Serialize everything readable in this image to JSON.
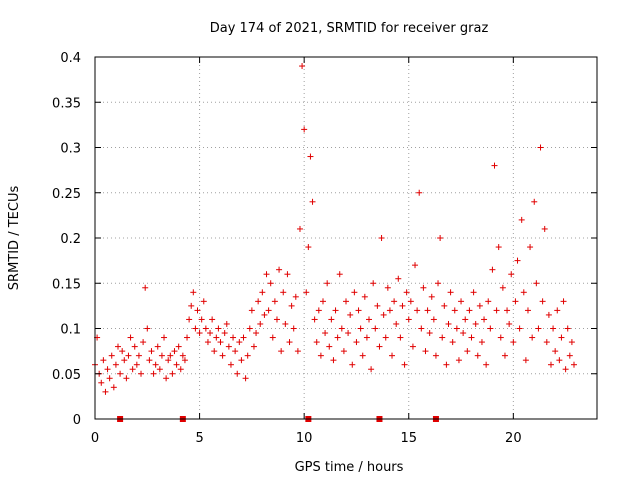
{
  "chart_data": {
    "type": "scatter",
    "title": "Day 174 of 2021, SRMTID for receiver graz",
    "xlabel": "GPS time / hours",
    "ylabel": "SRMTID / TECUs",
    "xlim": [
      0,
      24
    ],
    "ylim": [
      0,
      0.4
    ],
    "x_ticks": [
      0,
      5,
      10,
      15,
      20
    ],
    "x_tick_labels": [
      "0",
      "5",
      "10",
      "15",
      "20"
    ],
    "y_ticks": [
      0,
      0.05,
      0.1,
      0.15,
      0.2,
      0.25,
      0.3,
      0.35,
      0.4
    ],
    "y_tick_labels": [
      "0",
      "0.05",
      "0.1",
      "0.15",
      "0.2",
      "0.25",
      "0.3",
      "0.35",
      "0.4"
    ],
    "grid": true,
    "marker": "+",
    "color": "#e00000",
    "series": [
      {
        "name": "SRMTID",
        "points": [
          [
            0.0,
            0.06
          ],
          [
            0.1,
            0.09
          ],
          [
            0.2,
            0.05
          ],
          [
            0.3,
            0.04
          ],
          [
            0.4,
            0.065
          ],
          [
            0.5,
            0.03
          ],
          [
            0.6,
            0.055
          ],
          [
            0.7,
            0.045
          ],
          [
            0.8,
            0.07
          ],
          [
            0.9,
            0.035
          ],
          [
            1.0,
            0.06
          ],
          [
            1.1,
            0.08
          ],
          [
            1.2,
            0.05
          ],
          [
            1.3,
            0.075
          ],
          [
            1.4,
            0.065
          ],
          [
            1.5,
            0.045
          ],
          [
            1.6,
            0.07
          ],
          [
            1.7,
            0.09
          ],
          [
            1.8,
            0.055
          ],
          [
            1.9,
            0.08
          ],
          [
            2.0,
            0.06
          ],
          [
            2.1,
            0.07
          ],
          [
            2.2,
            0.05
          ],
          [
            2.3,
            0.085
          ],
          [
            2.4,
            0.145
          ],
          [
            2.5,
            0.1
          ],
          [
            2.6,
            0.065
          ],
          [
            2.7,
            0.075
          ],
          [
            2.8,
            0.05
          ],
          [
            2.9,
            0.06
          ],
          [
            3.0,
            0.08
          ],
          [
            3.1,
            0.055
          ],
          [
            3.2,
            0.07
          ],
          [
            3.3,
            0.09
          ],
          [
            3.4,
            0.045
          ],
          [
            3.5,
            0.065
          ],
          [
            3.6,
            0.07
          ],
          [
            3.7,
            0.05
          ],
          [
            3.8,
            0.075
          ],
          [
            3.9,
            0.06
          ],
          [
            4.0,
            0.08
          ],
          [
            4.1,
            0.055
          ],
          [
            4.2,
            0.07
          ],
          [
            4.3,
            0.065
          ],
          [
            4.4,
            0.09
          ],
          [
            4.5,
            0.11
          ],
          [
            4.6,
            0.125
          ],
          [
            4.7,
            0.14
          ],
          [
            4.8,
            0.1
          ],
          [
            4.9,
            0.12
          ],
          [
            5.0,
            0.095
          ],
          [
            5.1,
            0.11
          ],
          [
            5.2,
            0.13
          ],
          [
            5.3,
            0.1
          ],
          [
            5.4,
            0.085
          ],
          [
            5.5,
            0.095
          ],
          [
            5.6,
            0.11
          ],
          [
            5.7,
            0.075
          ],
          [
            5.8,
            0.09
          ],
          [
            5.9,
            0.1
          ],
          [
            6.0,
            0.085
          ],
          [
            6.1,
            0.07
          ],
          [
            6.2,
            0.095
          ],
          [
            6.3,
            0.105
          ],
          [
            6.4,
            0.08
          ],
          [
            6.5,
            0.06
          ],
          [
            6.6,
            0.09
          ],
          [
            6.7,
            0.075
          ],
          [
            6.8,
            0.05
          ],
          [
            6.9,
            0.085
          ],
          [
            7.0,
            0.065
          ],
          [
            7.1,
            0.09
          ],
          [
            7.2,
            0.045
          ],
          [
            7.3,
            0.07
          ],
          [
            7.4,
            0.1
          ],
          [
            7.5,
            0.12
          ],
          [
            7.6,
            0.08
          ],
          [
            7.7,
            0.095
          ],
          [
            7.8,
            0.13
          ],
          [
            7.9,
            0.105
          ],
          [
            8.0,
            0.14
          ],
          [
            8.1,
            0.115
          ],
          [
            8.2,
            0.16
          ],
          [
            8.3,
            0.12
          ],
          [
            8.4,
            0.15
          ],
          [
            8.5,
            0.09
          ],
          [
            8.6,
            0.13
          ],
          [
            8.7,
            0.11
          ],
          [
            8.8,
            0.165
          ],
          [
            8.9,
            0.075
          ],
          [
            9.0,
            0.14
          ],
          [
            9.1,
            0.105
          ],
          [
            9.2,
            0.16
          ],
          [
            9.3,
            0.085
          ],
          [
            9.4,
            0.125
          ],
          [
            9.5,
            0.1
          ],
          [
            9.6,
            0.135
          ],
          [
            9.7,
            0.075
          ],
          [
            9.8,
            0.21
          ],
          [
            9.9,
            0.39
          ],
          [
            10.0,
            0.32
          ],
          [
            10.1,
            0.14
          ],
          [
            10.2,
            0.19
          ],
          [
            10.3,
            0.29
          ],
          [
            10.4,
            0.24
          ],
          [
            10.5,
            0.11
          ],
          [
            10.6,
            0.085
          ],
          [
            10.7,
            0.12
          ],
          [
            10.8,
            0.07
          ],
          [
            10.9,
            0.13
          ],
          [
            11.0,
            0.095
          ],
          [
            11.1,
            0.15
          ],
          [
            11.2,
            0.08
          ],
          [
            11.3,
            0.11
          ],
          [
            11.4,
            0.065
          ],
          [
            11.5,
            0.12
          ],
          [
            11.6,
            0.09
          ],
          [
            11.7,
            0.16
          ],
          [
            11.8,
            0.1
          ],
          [
            11.9,
            0.075
          ],
          [
            12.0,
            0.13
          ],
          [
            12.1,
            0.095
          ],
          [
            12.2,
            0.115
          ],
          [
            12.3,
            0.06
          ],
          [
            12.4,
            0.14
          ],
          [
            12.5,
            0.085
          ],
          [
            12.6,
            0.12
          ],
          [
            12.7,
            0.1
          ],
          [
            12.8,
            0.07
          ],
          [
            12.9,
            0.135
          ],
          [
            13.0,
            0.09
          ],
          [
            13.1,
            0.11
          ],
          [
            13.2,
            0.055
          ],
          [
            13.3,
            0.15
          ],
          [
            13.4,
            0.1
          ],
          [
            13.5,
            0.125
          ],
          [
            13.6,
            0.08
          ],
          [
            13.7,
            0.2
          ],
          [
            13.8,
            0.115
          ],
          [
            13.9,
            0.09
          ],
          [
            14.0,
            0.145
          ],
          [
            14.1,
            0.12
          ],
          [
            14.2,
            0.07
          ],
          [
            14.3,
            0.13
          ],
          [
            14.4,
            0.105
          ],
          [
            14.5,
            0.155
          ],
          [
            14.6,
            0.09
          ],
          [
            14.7,
            0.125
          ],
          [
            14.8,
            0.06
          ],
          [
            14.9,
            0.14
          ],
          [
            15.0,
            0.11
          ],
          [
            15.1,
            0.13
          ],
          [
            15.2,
            0.08
          ],
          [
            15.3,
            0.17
          ],
          [
            15.4,
            0.12
          ],
          [
            15.5,
            0.25
          ],
          [
            15.6,
            0.1
          ],
          [
            15.7,
            0.145
          ],
          [
            15.8,
            0.075
          ],
          [
            15.9,
            0.12
          ],
          [
            16.0,
            0.095
          ],
          [
            16.1,
            0.135
          ],
          [
            16.2,
            0.11
          ],
          [
            16.3,
            0.07
          ],
          [
            16.4,
            0.15
          ],
          [
            16.5,
            0.2
          ],
          [
            16.6,
            0.09
          ],
          [
            16.7,
            0.125
          ],
          [
            16.8,
            0.06
          ],
          [
            16.9,
            0.105
          ],
          [
            17.0,
            0.14
          ],
          [
            17.1,
            0.085
          ],
          [
            17.2,
            0.12
          ],
          [
            17.3,
            0.1
          ],
          [
            17.4,
            0.065
          ],
          [
            17.5,
            0.13
          ],
          [
            17.6,
            0.095
          ],
          [
            17.7,
            0.11
          ],
          [
            17.8,
            0.075
          ],
          [
            17.9,
            0.12
          ],
          [
            18.0,
            0.09
          ],
          [
            18.1,
            0.14
          ],
          [
            18.2,
            0.105
          ],
          [
            18.3,
            0.07
          ],
          [
            18.4,
            0.125
          ],
          [
            18.5,
            0.085
          ],
          [
            18.6,
            0.11
          ],
          [
            18.7,
            0.06
          ],
          [
            18.8,
            0.13
          ],
          [
            18.9,
            0.1
          ],
          [
            19.0,
            0.165
          ],
          [
            19.1,
            0.28
          ],
          [
            19.2,
            0.12
          ],
          [
            19.3,
            0.19
          ],
          [
            19.4,
            0.09
          ],
          [
            19.5,
            0.145
          ],
          [
            19.6,
            0.07
          ],
          [
            19.7,
            0.12
          ],
          [
            19.8,
            0.105
          ],
          [
            19.9,
            0.16
          ],
          [
            20.0,
            0.085
          ],
          [
            20.1,
            0.13
          ],
          [
            20.2,
            0.175
          ],
          [
            20.3,
            0.1
          ],
          [
            20.4,
            0.22
          ],
          [
            20.5,
            0.14
          ],
          [
            20.6,
            0.065
          ],
          [
            20.7,
            0.12
          ],
          [
            20.8,
            0.19
          ],
          [
            20.9,
            0.09
          ],
          [
            21.0,
            0.24
          ],
          [
            21.1,
            0.15
          ],
          [
            21.2,
            0.1
          ],
          [
            21.3,
            0.3
          ],
          [
            21.4,
            0.13
          ],
          [
            21.5,
            0.21
          ],
          [
            21.6,
            0.085
          ],
          [
            21.7,
            0.115
          ],
          [
            21.8,
            0.06
          ],
          [
            21.9,
            0.1
          ],
          [
            22.0,
            0.075
          ],
          [
            22.1,
            0.12
          ],
          [
            22.2,
            0.065
          ],
          [
            22.3,
            0.09
          ],
          [
            22.4,
            0.13
          ],
          [
            22.5,
            0.055
          ],
          [
            22.6,
            0.1
          ],
          [
            22.7,
            0.07
          ],
          [
            22.8,
            0.085
          ],
          [
            22.9,
            0.06
          ]
        ]
      }
    ],
    "gap_markers_x": [
      1.2,
      4.2,
      10.2,
      13.6,
      16.3
    ]
  }
}
